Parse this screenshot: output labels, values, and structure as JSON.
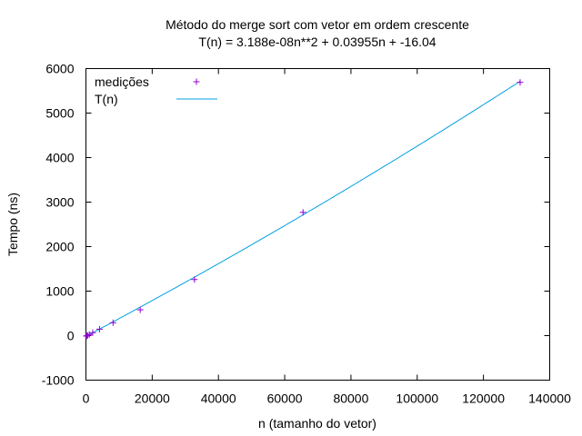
{
  "chart_data": {
    "type": "scatter",
    "title": "Método do merge sort com vetor em ordem crescente",
    "subtitle": "T(n) = 3.188e-08n**2 + 0.03955n + -16.04",
    "xlabel": "n (tamanho do vetor)",
    "ylabel": "Tempo (ns)",
    "xlim": [
      0,
      140000
    ],
    "ylim": [
      -1000,
      6000
    ],
    "xticks": [
      0,
      20000,
      40000,
      60000,
      80000,
      100000,
      120000,
      140000
    ],
    "yticks": [
      -1000,
      0,
      1000,
      2000,
      3000,
      4000,
      5000,
      6000
    ],
    "grid": false,
    "legend_position": "top-left",
    "series": [
      {
        "name": "medições",
        "kind": "points",
        "marker": "+",
        "color": "#9400d3",
        "x": [
          128,
          256,
          512,
          1024,
          2048,
          4096,
          8192,
          16384,
          32768,
          65536,
          131072
        ],
        "y": [
          -10,
          -5,
          5,
          25,
          65,
          145,
          290,
          580,
          1260,
          2770,
          5690
        ]
      },
      {
        "name": "T(n)",
        "kind": "fit",
        "color": "#00a0e0",
        "a": 3.188e-08,
        "b": 0.03955,
        "c": -16.04,
        "x_range": [
          128,
          131072
        ]
      }
    ]
  }
}
